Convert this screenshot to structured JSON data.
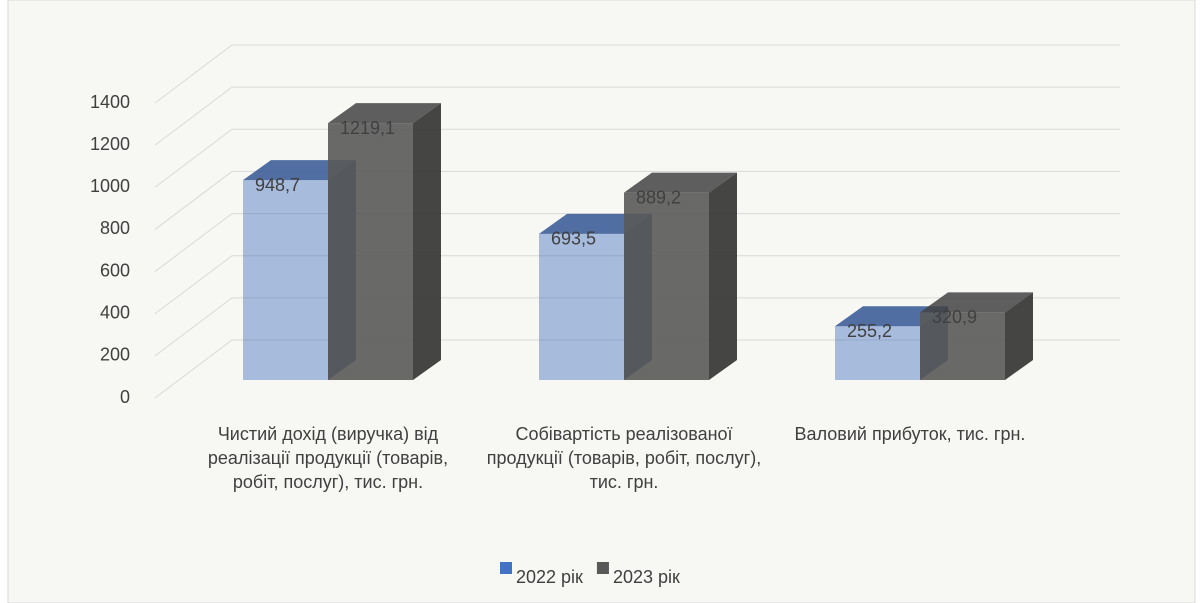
{
  "chart_data": {
    "type": "bar3d",
    "categories": [
      "Чистий дохід (виручка) від реалізації продукції (товарів, робіт, послуг), тис. грн.",
      "Собівартість реалізованої продукції (товарів, робіт, послуг), тис. грн.",
      "Валовий прибуток, тис. грн."
    ],
    "series": [
      {
        "name": "2022 рік",
        "color": "#4472c4",
        "values": [
          948.7,
          693.5,
          255.2
        ],
        "value_labels": [
          "948,7",
          "693,5",
          "255,2"
        ]
      },
      {
        "name": "2023 рік",
        "color": "#595959",
        "values": [
          1219.1,
          889.2,
          320.9
        ],
        "value_labels": [
          "1219,1",
          "889,2",
          "320,9"
        ]
      }
    ],
    "ylim": [
      0,
      1400
    ],
    "yticks": [
      0,
      200,
      400,
      600,
      800,
      1000,
      1200,
      1400
    ],
    "grid": true,
    "legend": "bottom"
  }
}
